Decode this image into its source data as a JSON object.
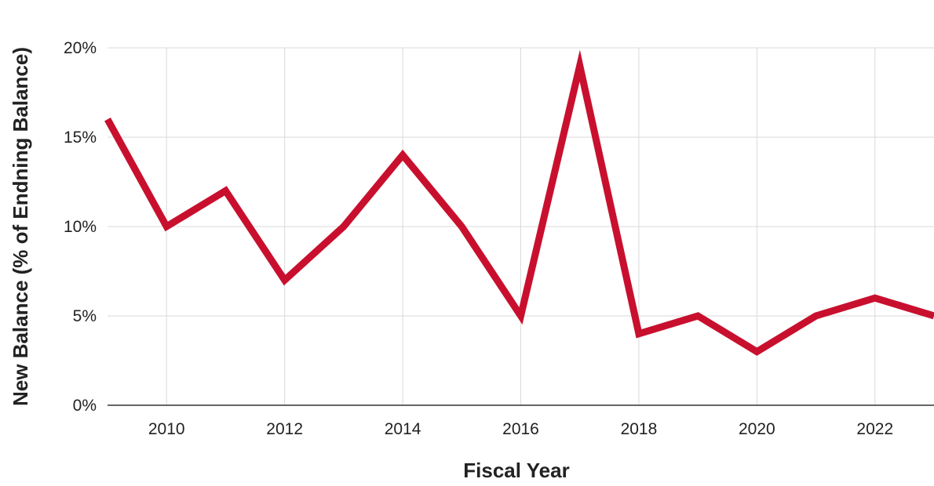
{
  "chart_data": {
    "type": "line",
    "title": "",
    "xlabel": "Fiscal Year",
    "ylabel": "New Balance (% of Endning Balance)",
    "x": [
      2009,
      2010,
      2011,
      2012,
      2013,
      2014,
      2015,
      2016,
      2017,
      2018,
      2019,
      2020,
      2021,
      2022,
      2023
    ],
    "series": [
      {
        "values": [
          16,
          10,
          12,
          7,
          10,
          14,
          10,
          5,
          19,
          4,
          5,
          3,
          5,
          6,
          5
        ]
      }
    ],
    "xlim": [
      2009,
      2023
    ],
    "ylim": [
      0,
      20
    ],
    "x_ticks": [
      "2010",
      "2012",
      "2014",
      "2016",
      "2018",
      "2020",
      "2022"
    ],
    "y_ticks": [
      "0%",
      "5%",
      "10%",
      "15%",
      "20%"
    ],
    "grid": true,
    "legend": "none",
    "colors": {
      "series": "#c8102e",
      "grid": "#d9d9d9"
    }
  }
}
